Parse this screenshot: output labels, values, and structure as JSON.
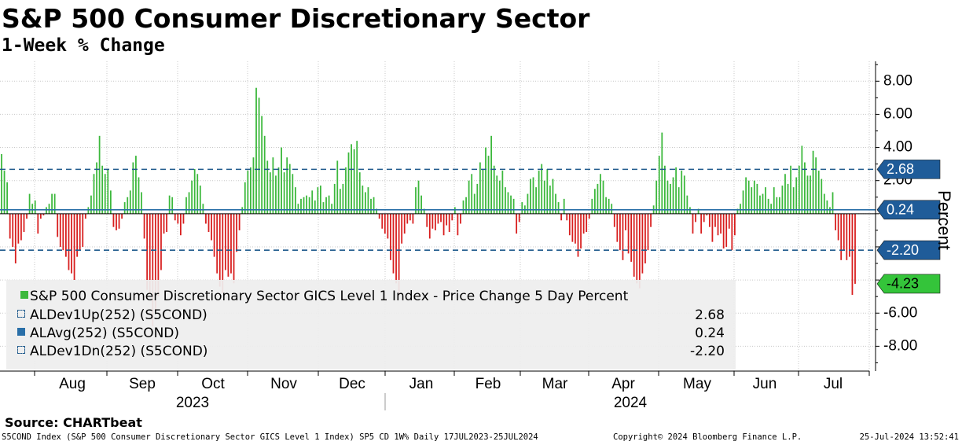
{
  "chart_data": {
    "type": "bar",
    "title": "S&P 500 Consumer Discretionary Sector",
    "subtitle": "1-Week % Change",
    "ylabel": "Percent",
    "ylim": [
      -9.5,
      9.2
    ],
    "yticks": [
      8,
      6,
      4,
      2,
      0,
      -2,
      -4,
      -6,
      -8
    ],
    "ytick_labels": [
      "8.00",
      "6.00",
      "4.00",
      "2.00",
      "",
      "",
      "",
      "-6.00",
      "-8.00"
    ],
    "months": [
      "Aug",
      "Sep",
      "Oct",
      "Nov",
      "Dec",
      "Jan",
      "Feb",
      "Mar",
      "Apr",
      "May",
      "Jun",
      "Jul"
    ],
    "years": [
      "2023",
      "2024"
    ],
    "x_start": "17JUL2023",
    "x_end": "25JUL2024",
    "series": [
      {
        "name": "S&P 500 Consumer Discretionary Sector GICS Level 1 Index - Price Change 5 Day Percent",
        "positive_color": "#3cb83c",
        "negative_color": "#d81e1e",
        "last_value": "-4.23",
        "values": [
          3.6,
          2.6,
          1.9,
          -1.5,
          -2.0,
          -3.0,
          -1.8,
          -1.6,
          -1.1,
          -0.3,
          1.2,
          0.6,
          0.8,
          -1.2,
          -0.3,
          -0.1,
          0.4,
          0.6,
          1.2,
          1.2,
          -1.4,
          -2.0,
          -2.2,
          -2.6,
          -3.4,
          -3.6,
          -4.0,
          -2.6,
          -2.2,
          -2.0,
          -0.3,
          0.4,
          1.1,
          2.4,
          3.1,
          4.7,
          2.9,
          2.4,
          2.7,
          1.4,
          -0.8,
          -1.0,
          -0.9,
          -0.3,
          0.7,
          1.0,
          1.4,
          3.1,
          3.5,
          2.2,
          1.3,
          -1.5,
          -4.6,
          -4.8,
          -6.8,
          -6.0,
          -5.0,
          -3.4,
          -1.2,
          -1.1,
          1.1,
          1.0,
          -0.4,
          -0.6,
          -1.3,
          -0.6,
          1.0,
          1.3,
          2.0,
          2.7,
          2.4,
          1.7,
          0.6,
          -0.6,
          -1.1,
          -1.6,
          -2.6,
          -3.6,
          -4.4,
          -4.8,
          -3.4,
          -3.8,
          -3.6,
          -4.2,
          -2.3,
          -1.0,
          0.4,
          1.9,
          2.6,
          2.8,
          3.4,
          7.6,
          7.0,
          5.9,
          4.7,
          3.2,
          2.5,
          3.4,
          2.3,
          2.8,
          4.0,
          2.5,
          3.4,
          3.0,
          2.4,
          1.6,
          0.6,
          0.9,
          1.0,
          1.1,
          1.0,
          1.4,
          0.8,
          1.6,
          1.7,
          0.7,
          1.0,
          1.1,
          0.6,
          1.8,
          3.2,
          1.5,
          1.8,
          2.8,
          3.7,
          4.2,
          3.9,
          4.4,
          2.5,
          1.7,
          1.3,
          1.6,
          0.9,
          1.0,
          0.3,
          -0.3,
          -0.9,
          -1.2,
          -1.5,
          -2.8,
          -3.6,
          -4.2,
          -4.9,
          -1.8,
          -1.2,
          -0.6,
          -0.4,
          -0.6,
          1.6,
          2.0,
          1.1,
          0.3,
          -0.8,
          -1.5,
          -0.9,
          -1.0,
          -0.6,
          -0.5,
          -1.3,
          -0.7,
          -1.1,
          -0.4,
          0.4,
          -1.3,
          -0.6,
          0.8,
          1.0,
          2.0,
          2.4,
          1.2,
          1.8,
          3.1,
          2.7,
          4.0,
          3.5,
          4.7,
          2.9,
          2.3,
          2.0,
          2.6,
          1.6,
          1.3,
          1.1,
          0.9,
          -1.2,
          -0.5,
          0.7,
          0.5,
          1.2,
          2.1,
          2.2,
          1.6,
          2.6,
          3.0,
          2.0,
          2.7,
          1.7,
          2.1,
          1.2,
          0.7,
          -0.4,
          0.9,
          -0.4,
          -1.3,
          -1.7,
          -1.8,
          -2.6,
          -2.1,
          -1.2,
          -1.1,
          -0.3,
          0.9,
          1.5,
          1.8,
          2.4,
          2.0,
          1.0,
          0.9,
          0.6,
          -0.8,
          -1.7,
          -2.2,
          -2.8,
          -1.0,
          -2.4,
          -2.9,
          -3.8,
          -4.2,
          -4.5,
          -3.6,
          -3.0,
          -2.2,
          -0.8,
          0.5,
          2.0,
          3.5,
          4.9,
          2.9,
          2.0,
          1.8,
          2.2,
          2.8,
          1.6,
          2.6,
          2.3,
          1.1,
          0.4,
          -1.2,
          -0.5,
          0.3,
          -1.2,
          -0.5,
          -0.1,
          -0.8,
          -1.7,
          -0.8,
          -1.3,
          -1.2,
          -2.1,
          -2.0,
          -0.9,
          -2.2,
          -1.3,
          0.3,
          0.6,
          1.4,
          2.2,
          2.0,
          1.6,
          2.0,
          1.8,
          1.1,
          1.2,
          1.6,
          0.9,
          0.6,
          1.6,
          1.0,
          1.0,
          1.7,
          2.4,
          1.8,
          2.9,
          1.6,
          2.2,
          2.9,
          4.1,
          3.1,
          2.3,
          2.3,
          3.8,
          3.4,
          2.6,
          2.1,
          1.2,
          0.8,
          0.4,
          1.3,
          -1.0,
          -1.6,
          -2.8,
          -2.2,
          -2.8,
          -2.6,
          -4.9,
          -4.23
        ]
      },
      {
        "name": "ALDev1Up(252) (S5COND)",
        "value": "2.68",
        "level": 2.68,
        "color": "#1f5a8c",
        "style": "dashed"
      },
      {
        "name": "ALAvg(252) (S5COND)",
        "value": "0.24",
        "level": 0.24,
        "color": "#2a6fa8",
        "style": "solid"
      },
      {
        "name": "ALDev1Dn(252) (S5COND)",
        "value": "-2.20",
        "level": -2.2,
        "color": "#1f5a8c",
        "style": "dashed"
      }
    ]
  },
  "source": "Source: CHARTbeat",
  "footer": {
    "left": "S5COND Index (S&P 500 Consumer Discretionary Sector GICS Level 1 Index) SP5 CD 1W%  Daily 17JUL2023-25JUL2024",
    "middle": "Copyright© 2024 Bloomberg Finance L.P.",
    "right": "25-Jul-2024 13:52:41"
  }
}
